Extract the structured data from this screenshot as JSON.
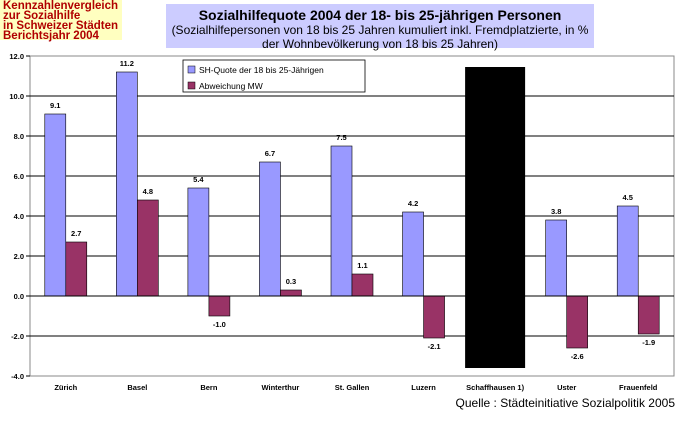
{
  "badge": {
    "lines": [
      "Kennzahlenvergleich",
      "zur Sozialhilfe",
      "in Schweizer Städten",
      "Berichtsjahr 2004"
    ]
  },
  "source": "Quelle : Städteinitiative Sozialpolitik 2005",
  "chart_data": {
    "type": "bar",
    "title": "Sozialhilfequote 2004 der 18- bis 25-jährigen Personen",
    "subtitle": "(Sozialhilfepersonen von 18 bis 25 Jahren kumuliert inkl. Fremdplatzierte, in % der Wohnbevölkerung von 18 bis 25 Jahren)",
    "categories": [
      "Zürich",
      "Basel",
      "Bern",
      "Winterthur",
      "St. Gallen",
      "Luzern",
      "Schaffhausen  1)",
      "Uster",
      "Frauenfeld"
    ],
    "series": [
      {
        "name": "SH-Quote der 18 bis 25-Jährigen",
        "color": "#9999ff",
        "values": [
          9.1,
          11.2,
          5.4,
          6.7,
          7.5,
          4.2,
          null,
          3.8,
          4.5
        ]
      },
      {
        "name": "Abweichung MW",
        "color": "#993366",
        "values": [
          2.7,
          4.8,
          -1.0,
          0.3,
          1.1,
          -2.1,
          null,
          -2.6,
          -1.9
        ]
      }
    ],
    "ylim": [
      -4,
      12
    ],
    "yticks": [
      "-4.0",
      "-2.0",
      "0.0",
      "2.0",
      "4.0",
      "6.0",
      "8.0",
      "10.0",
      "12.0"
    ],
    "legend": "top-left",
    "grid": true,
    "redacted_category": "Schaffhausen  1)"
  }
}
